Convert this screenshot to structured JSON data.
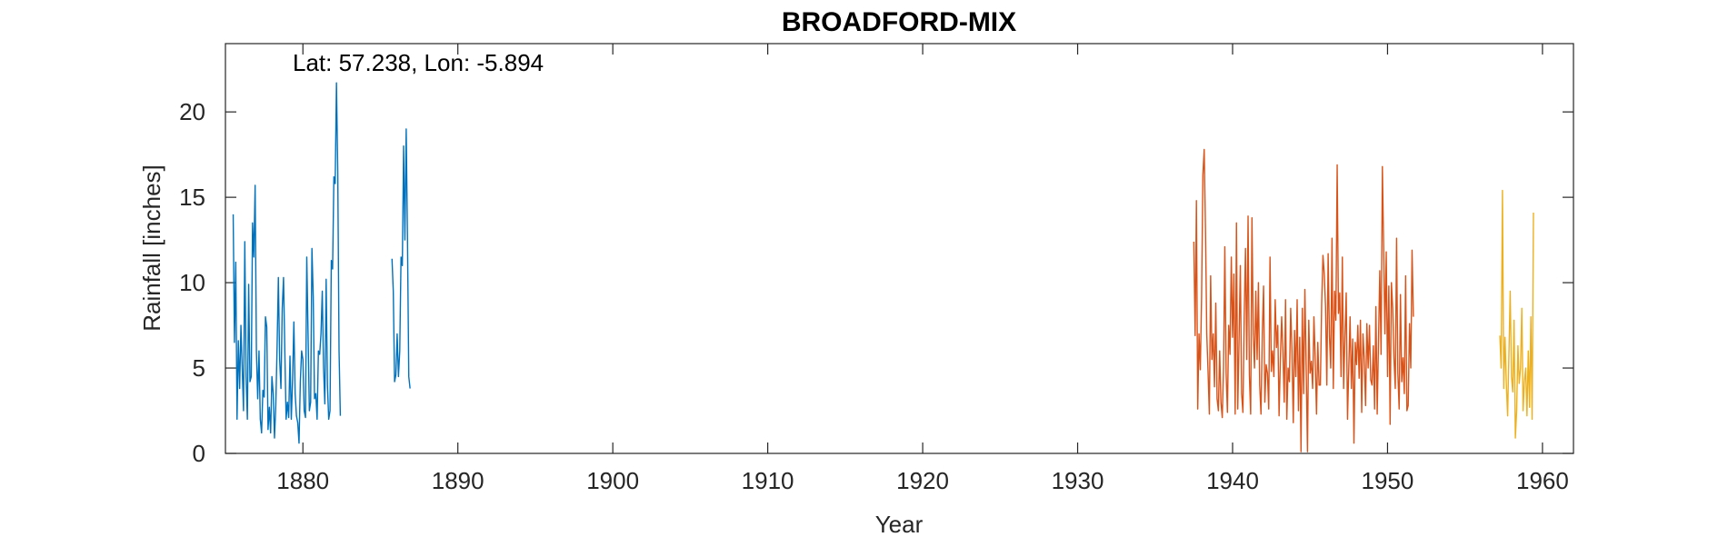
{
  "chart_data": {
    "type": "line",
    "title": "BROADFORD-MIX",
    "xlabel": "Year",
    "ylabel": "Rainfall [inches]",
    "annotation": "Lat: 57.238, Lon: -5.894",
    "xlim": [
      1875,
      1962
    ],
    "ylim": [
      0,
      24
    ],
    "xticks": [
      1880,
      1890,
      1900,
      1910,
      1920,
      1930,
      1940,
      1950,
      1960
    ],
    "yticks": [
      0,
      5,
      10,
      15,
      20
    ],
    "grid": false,
    "legend": "none",
    "series": [
      {
        "color": "#0072BD",
        "segments": [
          {
            "start": 1875.5,
            "step": 0.0833333,
            "values": [
              14.0,
              6.5,
              11.2,
              2.0,
              6.6,
              3.8,
              7.5,
              5.0,
              2.5,
              12.4,
              4.5,
              2.0,
              9.9,
              4.2,
              4.5,
              13.5,
              11.5,
              15.7,
              6.0,
              3.2,
              6.0,
              2.0,
              1.2,
              3.7,
              3.3,
              8.0,
              7.4,
              1.4,
              2.7,
              1.2,
              4.5,
              3.5,
              0.9,
              2.8,
              6.2,
              10.3,
              5.5,
              3.8,
              8.5,
              10.3,
              6.0,
              2.0,
              3.0,
              2.1,
              5.7,
              2.0,
              4.3,
              7.7,
              3.5,
              2.2,
              1.8,
              0.6,
              4.2,
              6.0,
              5.5,
              2.5,
              2.1,
              11.5,
              7.0,
              2.5,
              3.0,
              12.0,
              9.2,
              3.2,
              3.5,
              2.0,
              6.0,
              5.8,
              7.0,
              9.5,
              5.0,
              2.9,
              10.2,
              4.0,
              2.0,
              2.5,
              11.3,
              10.8,
              16.2,
              15.8,
              21.7,
              16.5,
              6.0,
              2.2
            ]
          },
          {
            "start": 1885.75,
            "step": 0.0833333,
            "values": [
              11.4,
              9.5,
              4.2,
              4.6,
              7.0,
              4.5,
              6.0,
              11.5,
              11.0,
              18.0,
              12.5,
              19.0,
              12.5,
              4.5,
              3.8
            ]
          }
        ]
      },
      {
        "color": "#D95319",
        "segments": [
          {
            "start": 1937.5,
            "step": 0.0833333,
            "values": [
              12.4,
              6.9,
              14.8,
              2.6,
              7.0,
              4.9,
              9.2,
              16.3,
              17.8,
              13.2,
              7.0,
              4.8,
              2.3,
              10.4,
              5.5,
              7.0,
              3.9,
              8.8,
              3.2,
              2.5,
              6.0,
              3.0,
              2.1,
              5.0,
              12.1,
              4.7,
              2.4,
              7.5,
              5.8,
              11.5,
              6.8,
              10.5,
              2.3,
              13.5,
              2.6,
              6.6,
              11.0,
              3.5,
              2.4,
              8.0,
              12.0,
              5.5,
              13.9,
              4.6,
              2.3,
              13.8,
              7.0,
              5.0,
              9.5,
              5.5,
              10.0,
              4.0,
              2.3,
              7.0,
              9.8,
              3.0,
              5.2,
              4.7,
              2.6,
              11.5,
              4.8,
              6.0,
              4.5,
              9.0,
              6.2,
              7.5,
              2.2,
              5.5,
              8.0,
              6.0,
              3.0,
              9.0,
              2.0,
              5.0,
              4.2,
              8.5,
              6.0,
              1.8,
              7.2,
              4.5,
              9.0,
              2.5,
              6.8,
              0.1,
              8.5,
              3.5,
              9.6,
              5.0,
              0.1,
              7.8,
              4.7,
              5.4,
              3.8,
              8.0,
              5.5,
              2.3,
              6.5,
              4.0,
              4.0,
              8.8,
              11.6,
              10.5,
              8.6,
              4.0,
              11.7,
              6.9,
              5.0,
              12.6,
              3.8,
              9.5,
              7.8,
              16.9,
              8.2,
              9.4,
              4.5,
              11.5,
              3.8,
              6.8,
              9.4,
              2.0,
              5.0,
              8.0,
              3.8,
              6.7,
              0.6,
              6.5,
              5.2,
              7.5,
              4.4,
              7.8,
              2.4,
              7.0,
              5.5,
              2.8,
              7.6,
              5.0,
              7.5,
              4.3,
              4.0,
              6.3,
              2.6,
              8.6,
              2.3,
              6.5,
              10.7,
              5.8,
              16.8,
              12.0,
              7.0,
              11.8,
              4.5,
              9.8,
              1.7,
              10.0,
              8.5,
              5.6,
              3.8,
              12.6,
              4.7,
              2.6,
              9.3,
              4.2,
              5.6,
              3.5,
              10.4,
              2.5,
              2.8,
              7.6,
              5.0,
              11.9,
              8.0
            ]
          }
        ]
      },
      {
        "color": "#EDB120",
        "segments": [
          {
            "start": 1957.25,
            "step": 0.0833333,
            "values": [
              6.9,
              5.0,
              15.4,
              3.8,
              6.8,
              4.1,
              2.2,
              5.8,
              9.5,
              4.5,
              3.6,
              7.8,
              0.9,
              2.5,
              6.3,
              4.1,
              5.0,
              8.5,
              2.5,
              4.2,
              5.0,
              2.2,
              6.0,
              2.7,
              8.0,
              2.0,
              14.1
            ]
          }
        ]
      }
    ]
  }
}
